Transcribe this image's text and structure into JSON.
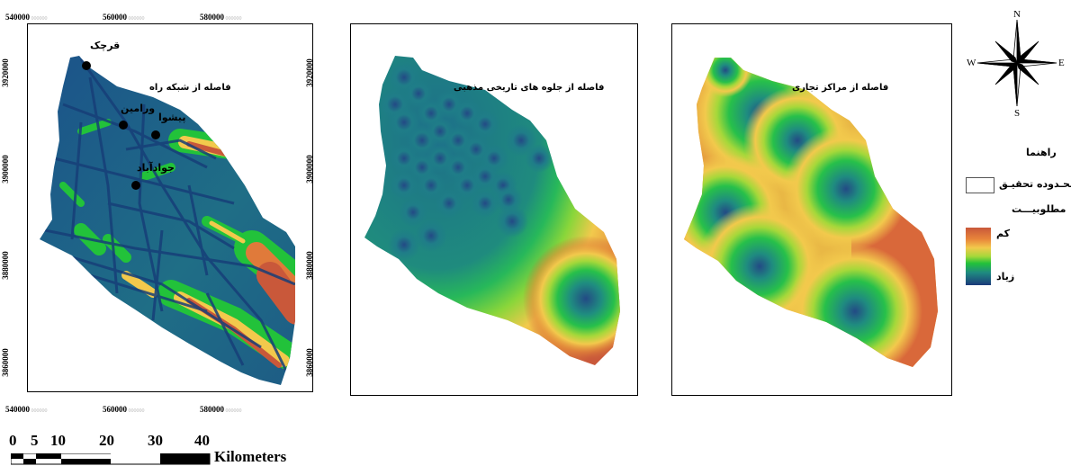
{
  "map1": {
    "title": "فاصله از شبکه راه",
    "cities": [
      "قرچک",
      "ورامین",
      "پیشوا",
      "جوادآباد"
    ],
    "x_ticks": [
      "540000",
      "560000",
      "580000"
    ],
    "y_ticks_left": [
      "3920000",
      "3900000",
      "3880000",
      "3860000"
    ],
    "y_ticks_right": [
      "3920000",
      "3900000",
      "3880000",
      "3860000"
    ]
  },
  "map2": {
    "title": "فاصله از جلوه های تاریخی مذهبی"
  },
  "map3": {
    "title": "فاصله از مراکز تجاری"
  },
  "north_arrow": {
    "n": "N",
    "s": "S",
    "e": "E",
    "w": "W"
  },
  "legend": {
    "title": "راهنما",
    "boundary_label": "محـدوده تحقیـق",
    "suitability_label": "مطلوبیـــت",
    "low_label": "کم",
    "high_label": "زیاد",
    "colors": {
      "low": "#c9583a",
      "mid_high": "#f2c94c",
      "mid": "#22c23a",
      "high": "#1b3a7a"
    }
  },
  "scale_bar": {
    "ticks": [
      "0",
      "5",
      "10",
      "20",
      "30",
      "40"
    ],
    "unit": "Kilometers"
  }
}
